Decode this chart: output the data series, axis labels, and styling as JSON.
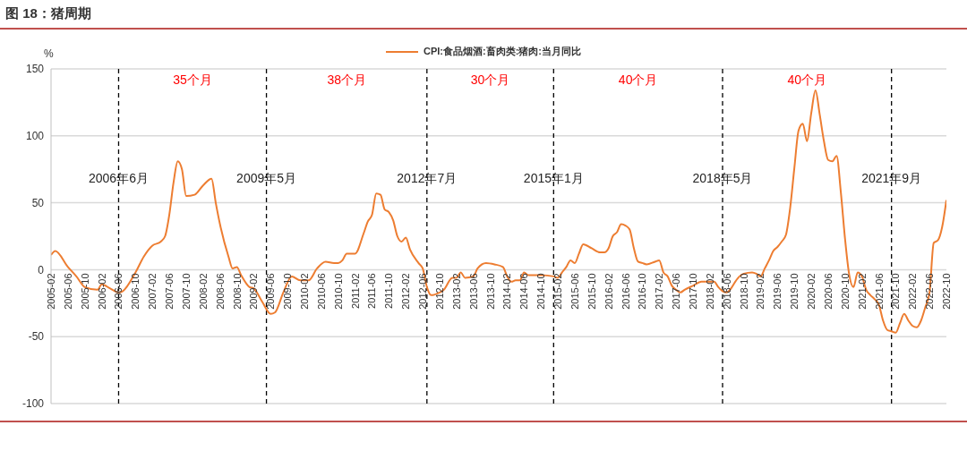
{
  "chart_data": {
    "type": "line",
    "title": "图 18：猪周期",
    "ylabel": "%",
    "legend": "top",
    "grid": "y",
    "marker": "none",
    "line_style": "solid",
    "x": [
      "2005-02",
      "2005-03",
      "2005-06",
      "2005-08",
      "2005-10",
      "2006-01",
      "2006-02",
      "2006-04",
      "2006-06",
      "2006-07",
      "2006-10",
      "2006-12",
      "2007-02",
      "2007-04",
      "2007-05",
      "2007-06",
      "2007-07",
      "2007-08",
      "2007-09",
      "2007-10",
      "2007-12",
      "2008-02",
      "2008-04",
      "2008-05",
      "2008-06",
      "2008-08",
      "2008-09",
      "2008-10",
      "2008-11",
      "2009-01",
      "2009-02",
      "2009-04",
      "2009-06",
      "2009-07",
      "2009-09",
      "2009-11",
      "2010-01",
      "2010-03",
      "2010-05",
      "2010-07",
      "2010-09",
      "2010-10",
      "2010-11",
      "2010-12",
      "2011-02",
      "2011-04",
      "2011-05",
      "2011-06",
      "2011-07",
      "2011-08",
      "2011-09",
      "2011-10",
      "2011-11",
      "2011-12",
      "2012-01",
      "2012-02",
      "2012-03",
      "2012-05",
      "2012-06",
      "2012-07",
      "2012-08",
      "2012-10",
      "2012-11",
      "2013-01",
      "2013-02",
      "2013-03",
      "2013-04",
      "2013-06",
      "2013-07",
      "2013-09",
      "2013-11",
      "2014-01",
      "2014-02",
      "2014-03",
      "2014-04",
      "2014-05",
      "2014-06",
      "2014-07",
      "2014-10",
      "2015-01",
      "2015-02",
      "2015-03",
      "2015-04",
      "2015-05",
      "2015-06",
      "2015-07",
      "2015-08",
      "2015-10",
      "2015-12",
      "2016-01",
      "2016-02",
      "2016-03",
      "2016-04",
      "2016-05",
      "2016-06",
      "2016-07",
      "2016-08",
      "2016-09",
      "2016-10",
      "2016-11",
      "2017-01",
      "2017-02",
      "2017-03",
      "2017-04",
      "2017-05",
      "2017-06",
      "2017-07",
      "2017-08",
      "2017-10",
      "2017-12",
      "2018-02",
      "2018-03",
      "2018-04",
      "2018-05",
      "2018-06",
      "2018-07",
      "2018-08",
      "2018-09",
      "2018-10",
      "2018-12",
      "2019-01",
      "2019-02",
      "2019-03",
      "2019-04",
      "2019-05",
      "2019-06",
      "2019-07",
      "2019-08",
      "2019-09",
      "2019-10",
      "2019-11",
      "2019-12",
      "2020-01",
      "2020-02",
      "2020-03",
      "2020-04",
      "2020-05",
      "2020-06",
      "2020-07",
      "2020-08",
      "2020-09",
      "2020-10",
      "2020-11",
      "2020-12",
      "2021-01",
      "2021-02",
      "2021-03",
      "2021-04",
      "2021-05",
      "2021-06",
      "2021-07",
      "2021-08",
      "2021-09",
      "2021-10",
      "2021-11",
      "2021-12",
      "2022-01",
      "2022-02",
      "2022-03",
      "2022-04",
      "2022-05",
      "2022-06",
      "2022-07",
      "2022-08",
      "2022-09",
      "2022-10"
    ],
    "series": [
      {
        "name": "CPI:食品烟酒:畜肉类:猪肉:当月同比",
        "color": "#ed7d31",
        "values": [
          11,
          14,
          2,
          -5,
          -13,
          -15,
          -11,
          -14,
          -17,
          -16,
          -2,
          10,
          18,
          21,
          25,
          41,
          65,
          81,
          75,
          55,
          56,
          63,
          68,
          50,
          34,
          10,
          1,
          2,
          -4,
          -13,
          -14,
          -24,
          -33,
          -32,
          -17,
          -5,
          -8,
          -8,
          1,
          6,
          5,
          5,
          7,
          12,
          12,
          27,
          36,
          41,
          57,
          56,
          45,
          43,
          37,
          25,
          21,
          24,
          15,
          5,
          1,
          -13,
          -19,
          -17,
          -15,
          -6,
          -6,
          -2,
          -6,
          -5,
          1,
          5,
          4,
          2,
          -5,
          -9,
          -8,
          -8,
          -2,
          -4,
          -4,
          -5,
          -6,
          -2,
          2,
          7,
          5,
          12,
          19,
          16,
          13,
          13,
          16,
          25,
          28,
          34,
          33,
          30,
          16,
          6,
          5,
          4,
          6,
          7,
          -2,
          -5,
          -12,
          -15,
          -17,
          -15,
          -12,
          -9,
          -9,
          -9,
          -13,
          -16,
          -17,
          -14,
          -9,
          -5,
          -3,
          -2,
          -3,
          -5,
          1,
          7,
          14,
          17,
          21,
          26,
          46,
          76,
          104,
          109,
          96,
          117,
          134,
          116,
          96,
          82,
          81,
          85,
          58,
          23,
          -4,
          -13,
          -2,
          -5,
          -15,
          -19,
          -22,
          -26,
          -38,
          -45,
          -46,
          -47,
          -40,
          -33,
          -38,
          -42,
          -43,
          -38,
          -28,
          -17,
          20,
          22,
          32,
          52
        ]
      }
    ],
    "xlim": [
      "2005-02",
      "2022-10"
    ],
    "xticks": [
      "2005-02",
      "2005-06",
      "2005-10",
      "2006-02",
      "2006-06",
      "2006-10",
      "2007-02",
      "2007-06",
      "2007-10",
      "2008-02",
      "2008-06",
      "2008-10",
      "2009-02",
      "2009-06",
      "2009-10",
      "2010-02",
      "2010-06",
      "2010-10",
      "2011-02",
      "2011-06",
      "2011-10",
      "2012-02",
      "2012-06",
      "2012-10",
      "2013-02",
      "2013-06",
      "2013-10",
      "2014-02",
      "2014-06",
      "2014-10",
      "2015-02",
      "2015-06",
      "2015-10",
      "2016-02",
      "2016-06",
      "2016-10",
      "2017-02",
      "2017-06",
      "2017-10",
      "2018-02",
      "2018-06",
      "2018-10",
      "2019-02",
      "2019-06",
      "2019-10",
      "2020-02",
      "2020-06",
      "2020-10",
      "2021-02",
      "2021-06",
      "2021-10",
      "2022-02",
      "2022-06",
      "2022-10"
    ],
    "ylim": [
      -100,
      150
    ],
    "yticks": [
      -100,
      -50,
      0,
      50,
      100,
      150
    ],
    "ref_lines": [
      {
        "axis": "x",
        "value": "2006-06",
        "label": "2006年6月",
        "color": "#000000",
        "line_style": "dashed"
      },
      {
        "axis": "x",
        "value": "2009-05",
        "label": "2009年5月",
        "color": "#000000",
        "line_style": "dashed"
      },
      {
        "axis": "x",
        "value": "2012-07",
        "label": "2012年7月",
        "color": "#000000",
        "line_style": "dashed"
      },
      {
        "axis": "x",
        "value": "2015-01",
        "label": "2015年1月",
        "color": "#000000",
        "line_style": "dashed"
      },
      {
        "axis": "x",
        "value": "2018-05",
        "label": "2018年5月",
        "color": "#000000",
        "line_style": "dashed"
      },
      {
        "axis": "x",
        "value": "2021-09",
        "label": "2021年9月",
        "color": "#000000",
        "line_style": "dashed"
      }
    ],
    "annotations": [
      "35个月",
      "38个月",
      "30个月",
      "40个月",
      "40个月"
    ]
  }
}
